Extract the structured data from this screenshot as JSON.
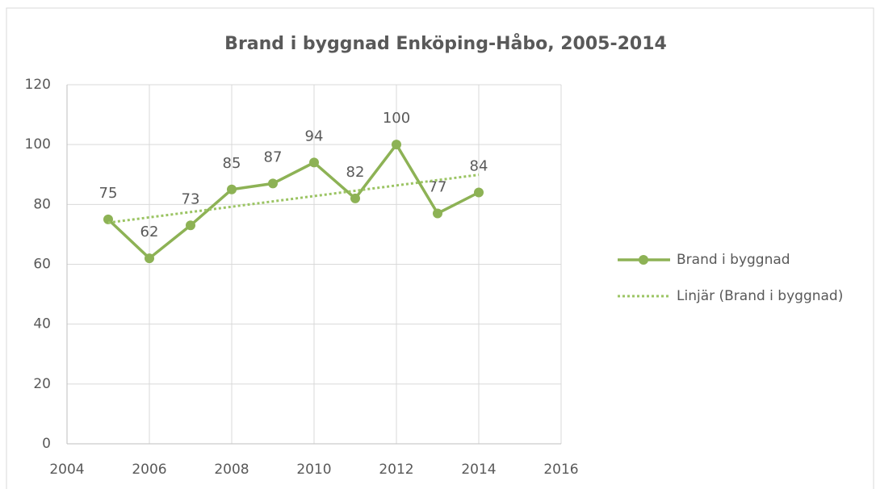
{
  "chart_data": {
    "type": "line",
    "title": "Brand i byggnad Enköping-Håbo, 2005-2014",
    "series": [
      {
        "name": "Brand i byggnad",
        "color": "#8db255",
        "style": "solid",
        "markers": true,
        "x": [
          2005,
          2006,
          2007,
          2008,
          2009,
          2010,
          2011,
          2012,
          2013,
          2014
        ],
        "values": [
          75,
          62,
          73,
          85,
          87,
          94,
          82,
          100,
          77,
          84
        ],
        "data_labels": true
      },
      {
        "name": "Linjär (Brand i byggnad)",
        "color": "#9bc463",
        "style": "dotted",
        "markers": false,
        "x": [
          2005,
          2014
        ],
        "values": [
          73.9,
          89.9
        ],
        "data_labels": false
      }
    ],
    "xlim": [
      2004,
      2016
    ],
    "xticks": [
      2004,
      2006,
      2008,
      2010,
      2012,
      2014,
      2016
    ],
    "ylim": [
      0,
      120
    ],
    "yticks": [
      0,
      20,
      40,
      60,
      80,
      100,
      120
    ],
    "grid": true,
    "legend": "right"
  }
}
